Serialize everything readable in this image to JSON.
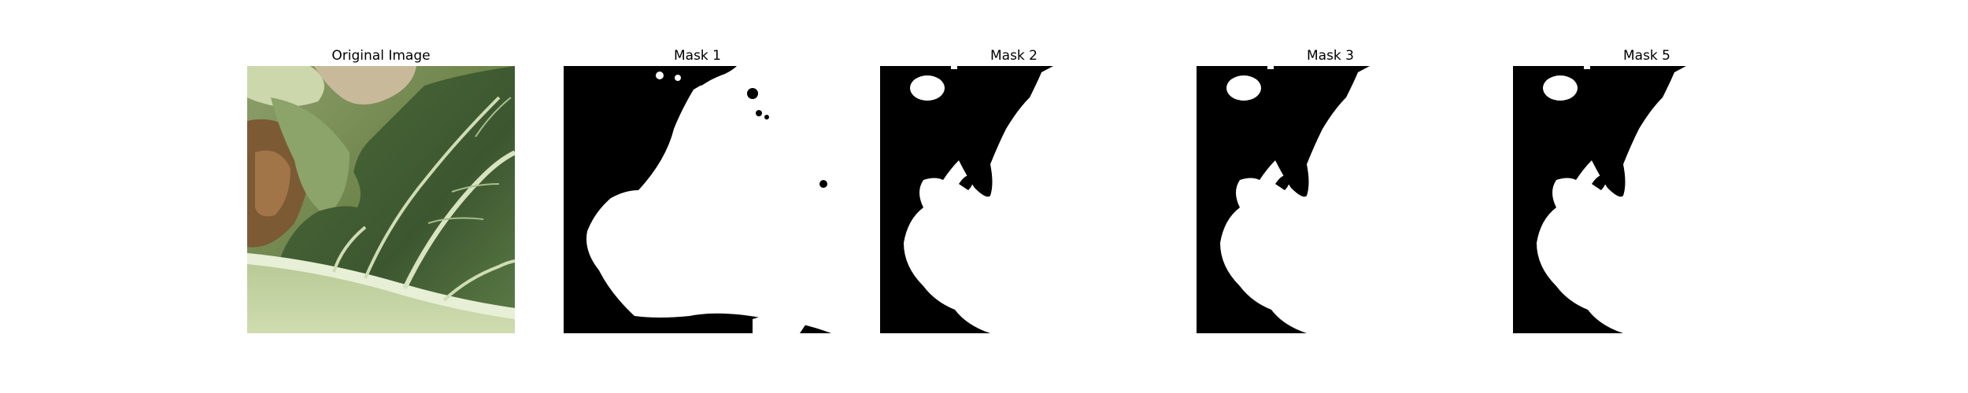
{
  "figure": {
    "panels": [
      {
        "id": "original",
        "title": "Original Image",
        "kind": "photo"
      },
      {
        "id": "mask1",
        "title": "Mask 1",
        "kind": "mask"
      },
      {
        "id": "mask2",
        "title": "Mask 2",
        "kind": "mask"
      },
      {
        "id": "mask3",
        "title": "Mask 3",
        "kind": "mask"
      },
      {
        "id": "mask5",
        "title": "Mask 5",
        "kind": "mask"
      }
    ]
  },
  "colors": {
    "background": "#ffffff",
    "mask_foreground": "#ffffff",
    "mask_background": "#000000",
    "leaf_dark": "#3f5b2e",
    "leaf_mid": "#5f7d45",
    "leaf_light": "#a9c08a",
    "vein": "#dfe9cc",
    "brown": "#7b5a34"
  }
}
